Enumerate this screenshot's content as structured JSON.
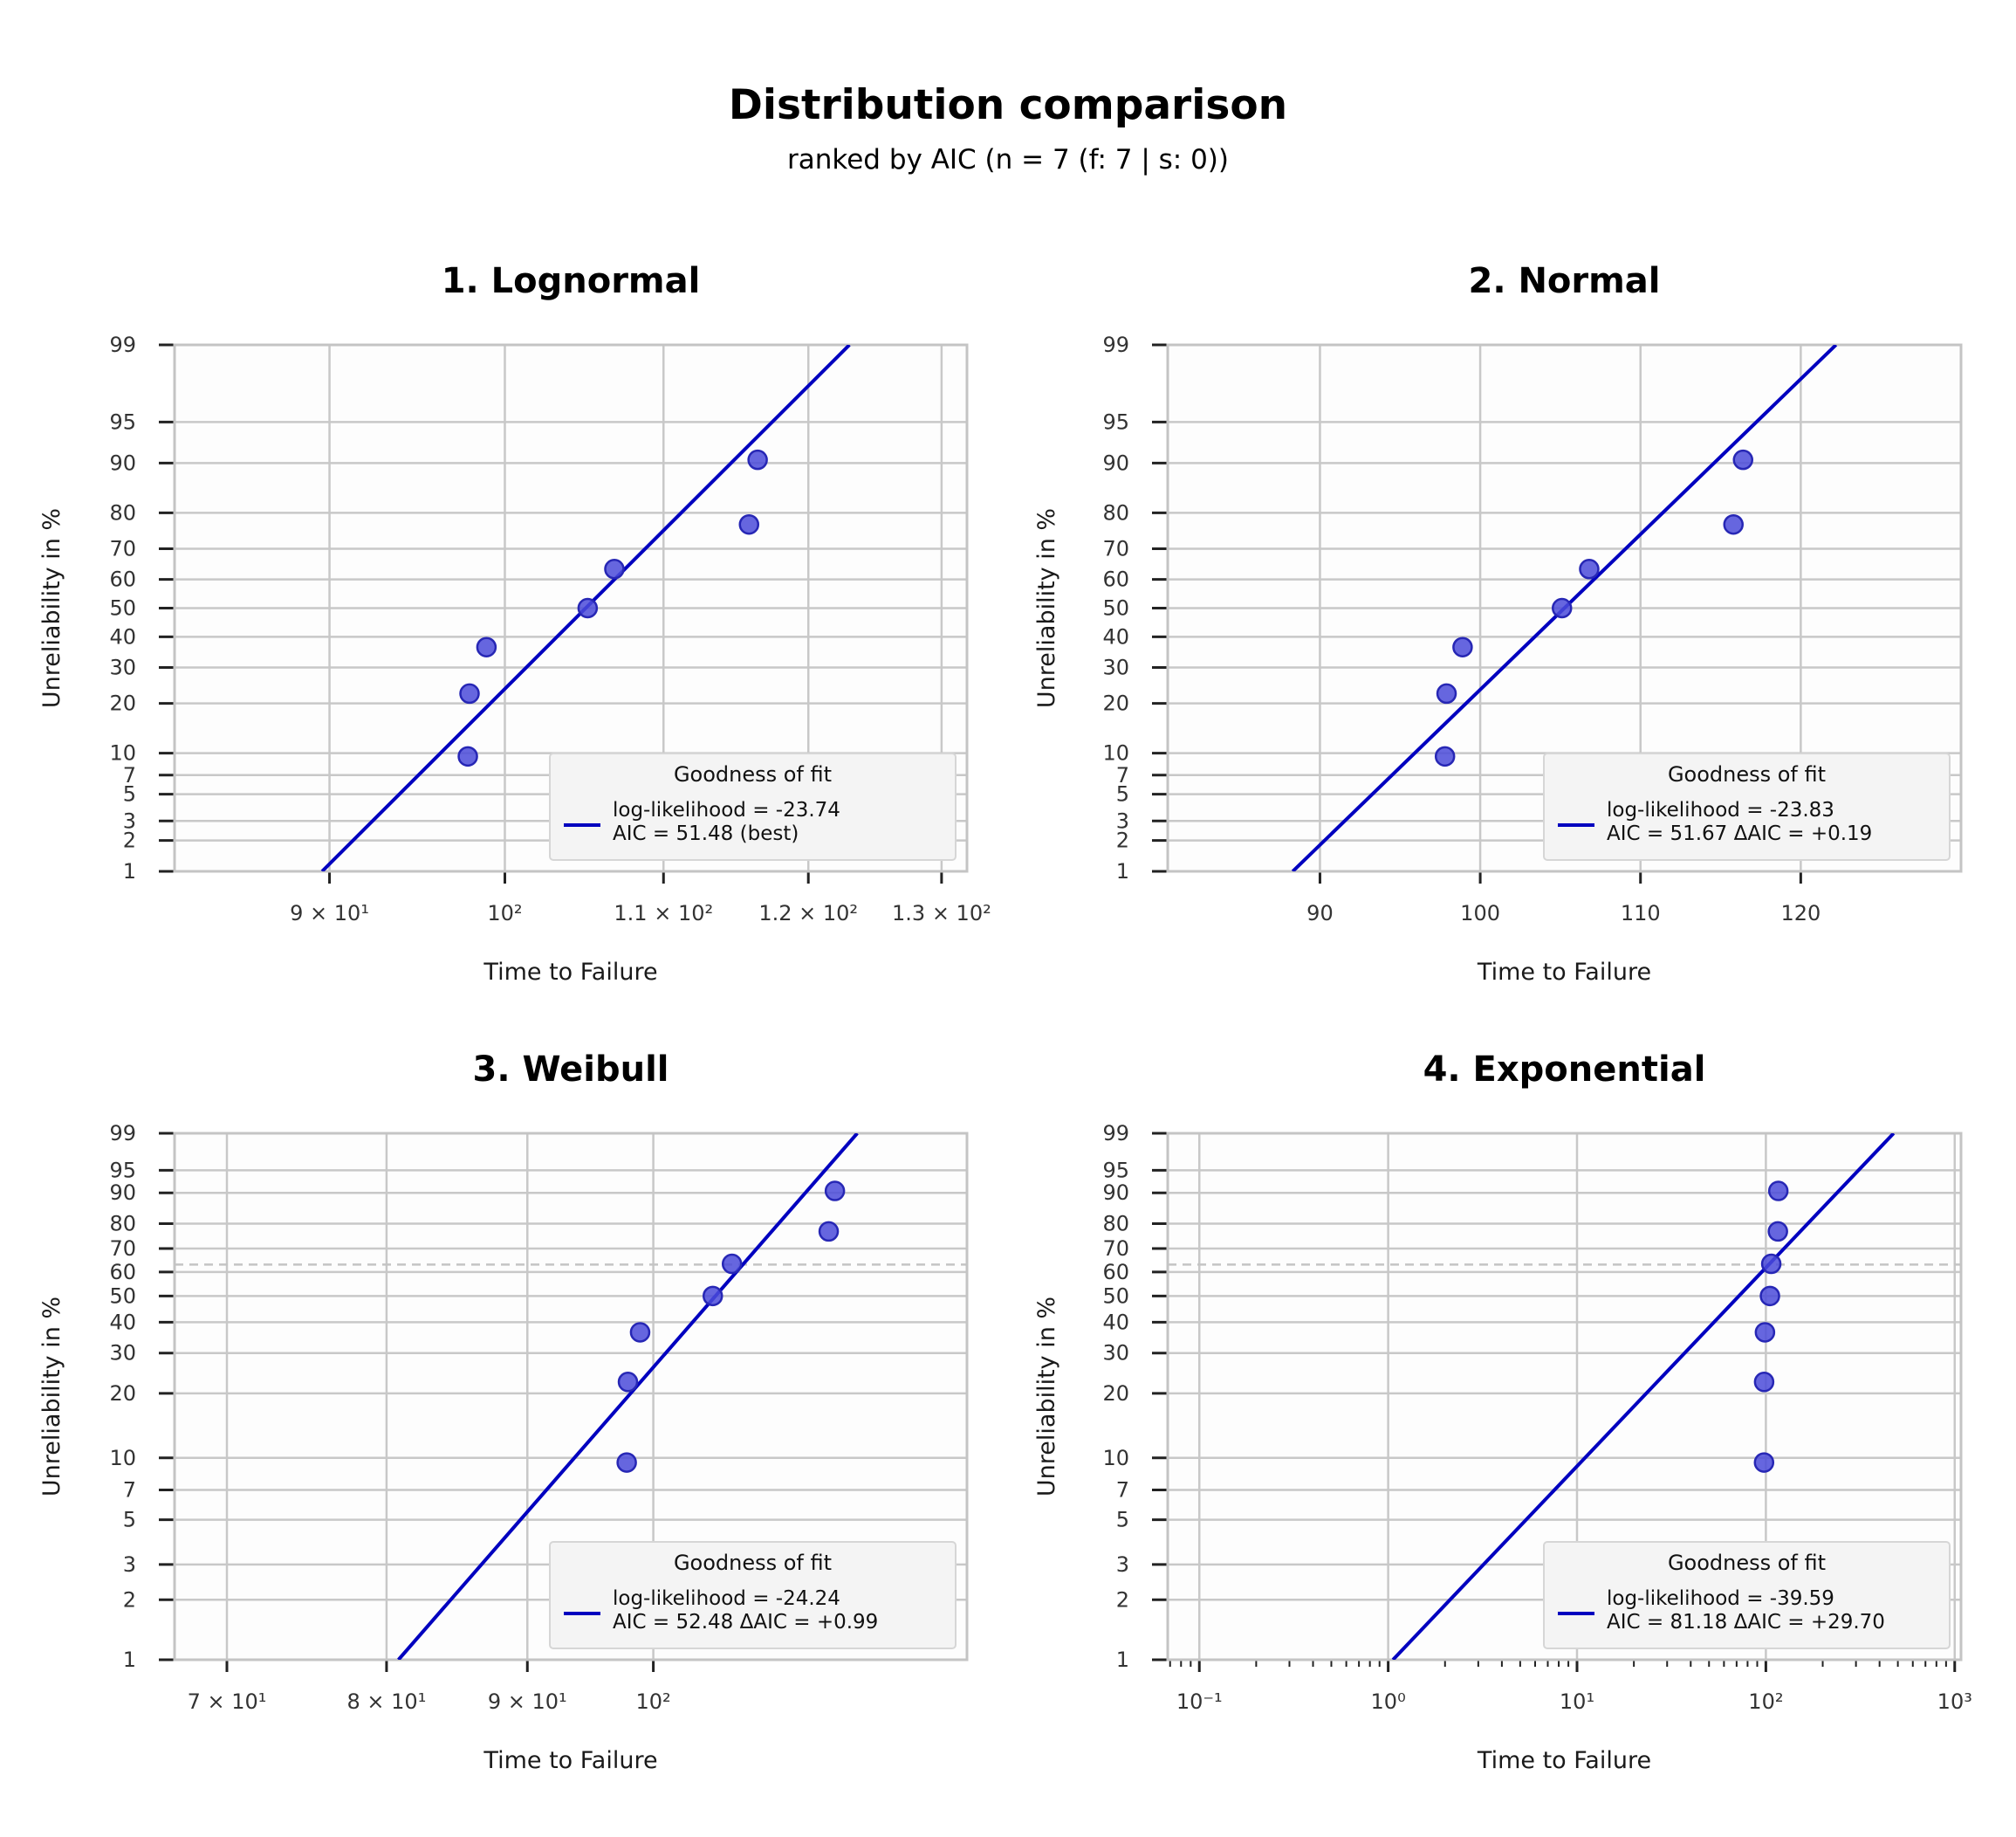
{
  "figure": {
    "title": "Distribution comparison",
    "subtitle": "ranked by AIC  (n = 7 (f: 7 | s: 0))"
  },
  "colors": {
    "fit_line": "#0000bf",
    "points_fill": "#4b4bd9",
    "points_edge": "#2727b5",
    "grid": "#c8c8c8",
    "plot_bg": "#fdfdfd",
    "legend_bg": "#f4f4f4"
  },
  "chart_data": [
    {
      "type": "scatter",
      "title": "1.  Lognormal",
      "xlabel": "Time to Failure",
      "ylabel": "Unreliability in %",
      "x_scale": "log",
      "y_scale": "lognormal probability",
      "xlim": [
        82,
        132
      ],
      "ylim": [
        1,
        99
      ],
      "grid": true,
      "x_ticks": [
        {
          "value": 90,
          "label": "9 × 10¹"
        },
        {
          "value": 100,
          "label": "10²"
        },
        {
          "value": 110,
          "label": "1.1 × 10²"
        },
        {
          "value": 120,
          "label": "1.2 × 10²"
        },
        {
          "value": 130,
          "label": "1.3 × 10²"
        }
      ],
      "y_ticks": [
        1,
        2,
        3,
        5,
        7,
        10,
        20,
        30,
        40,
        50,
        60,
        70,
        80,
        90,
        95,
        99
      ],
      "points": {
        "x": [
          97.8,
          97.9,
          98.9,
          105.1,
          106.8,
          115.8,
          116.4
        ],
        "y": [
          9.5,
          22.5,
          36.5,
          50,
          63.5,
          77,
          90.5
        ]
      },
      "fit_line": {
        "x": [
          89.6,
          123.0
        ],
        "y": [
          1,
          99
        ]
      },
      "legend": {
        "title": "Goodness of fit",
        "lines": [
          "log-likelihood = -23.74",
          "AIC = 51.48  (best)"
        ],
        "position": "lower right"
      }
    },
    {
      "type": "scatter",
      "title": "2.  Normal",
      "xlabel": "Time to Failure",
      "ylabel": "Unreliability in %",
      "x_scale": "linear",
      "y_scale": "normal probability",
      "xlim": [
        80.5,
        130
      ],
      "ylim": [
        1,
        99
      ],
      "grid": true,
      "x_ticks": [
        {
          "value": 90,
          "label": "90"
        },
        {
          "value": 100,
          "label": "100"
        },
        {
          "value": 110,
          "label": "110"
        },
        {
          "value": 120,
          "label": "120"
        }
      ],
      "y_ticks": [
        1,
        2,
        3,
        5,
        7,
        10,
        20,
        30,
        40,
        50,
        60,
        70,
        80,
        90,
        95,
        99
      ],
      "points": {
        "x": [
          97.8,
          97.9,
          98.9,
          105.1,
          106.8,
          115.8,
          116.4
        ],
        "y": [
          9.5,
          22.5,
          36.5,
          50,
          63.5,
          77,
          90.5
        ]
      },
      "fit_line": {
        "x": [
          88.3,
          122.2
        ],
        "y": [
          1,
          99
        ]
      },
      "legend": {
        "title": "Goodness of fit",
        "lines": [
          "log-likelihood = -23.83",
          "AIC = 51.67   ΔAIC = +0.19"
        ],
        "position": "lower right"
      }
    },
    {
      "type": "scatter",
      "title": "3.  Weibull",
      "xlabel": "Time to Failure",
      "ylabel": "Unreliability in %",
      "x_scale": "log",
      "y_scale": "weibull probability",
      "xlim": [
        67,
        130
      ],
      "ylim": [
        1,
        99
      ],
      "grid": true,
      "reference_line_pct": 63.2,
      "x_ticks": [
        {
          "value": 70,
          "label": "7 × 10¹"
        },
        {
          "value": 80,
          "label": "8 × 10¹"
        },
        {
          "value": 90,
          "label": "9 × 10¹"
        },
        {
          "value": 100,
          "label": "10²"
        }
      ],
      "y_ticks": [
        1,
        2,
        3,
        5,
        7,
        10,
        20,
        30,
        40,
        50,
        60,
        70,
        80,
        90,
        95,
        99
      ],
      "points": {
        "x": [
          97.8,
          97.9,
          98.9,
          105.1,
          106.8,
          115.8,
          116.4
        ],
        "y": [
          9.5,
          22.5,
          36.5,
          50,
          63.5,
          77,
          90.5
        ]
      },
      "fit_line": {
        "x": [
          80.8,
          118.6
        ],
        "y": [
          1,
          99
        ]
      },
      "legend": {
        "title": "Goodness of fit",
        "lines": [
          "log-likelihood = -24.24",
          "AIC = 52.48   ΔAIC = +0.99"
        ],
        "position": "lower right"
      }
    },
    {
      "type": "scatter",
      "title": "4.  Exponential",
      "xlabel": "Time to Failure",
      "ylabel": "Unreliability in %",
      "x_scale": "log",
      "y_scale": "weibull probability",
      "xlim": [
        0.068,
        1080
      ],
      "ylim": [
        1,
        99
      ],
      "grid": true,
      "reference_line_pct": 63.2,
      "x_ticks": [
        {
          "value": 0.1,
          "label": "10⁻¹"
        },
        {
          "value": 1,
          "label": "10⁰"
        },
        {
          "value": 10,
          "label": "10¹"
        },
        {
          "value": 100,
          "label": "10²"
        },
        {
          "value": 1000,
          "label": "10³"
        }
      ],
      "y_ticks": [
        1,
        2,
        3,
        5,
        7,
        10,
        20,
        30,
        40,
        50,
        60,
        70,
        80,
        90,
        95,
        99
      ],
      "points": {
        "x": [
          97.8,
          97.9,
          98.9,
          105.1,
          106.8,
          115.8,
          116.4
        ],
        "y": [
          9.5,
          22.5,
          36.5,
          50,
          63.5,
          77,
          90.5
        ]
      },
      "fit_line": {
        "x": [
          1.06,
          475
        ],
        "y": [
          1,
          99
        ]
      },
      "legend": {
        "title": "Goodness of fit",
        "lines": [
          "log-likelihood = -39.59",
          "AIC = 81.18   ΔAIC = +29.70"
        ],
        "position": "lower right"
      }
    }
  ]
}
